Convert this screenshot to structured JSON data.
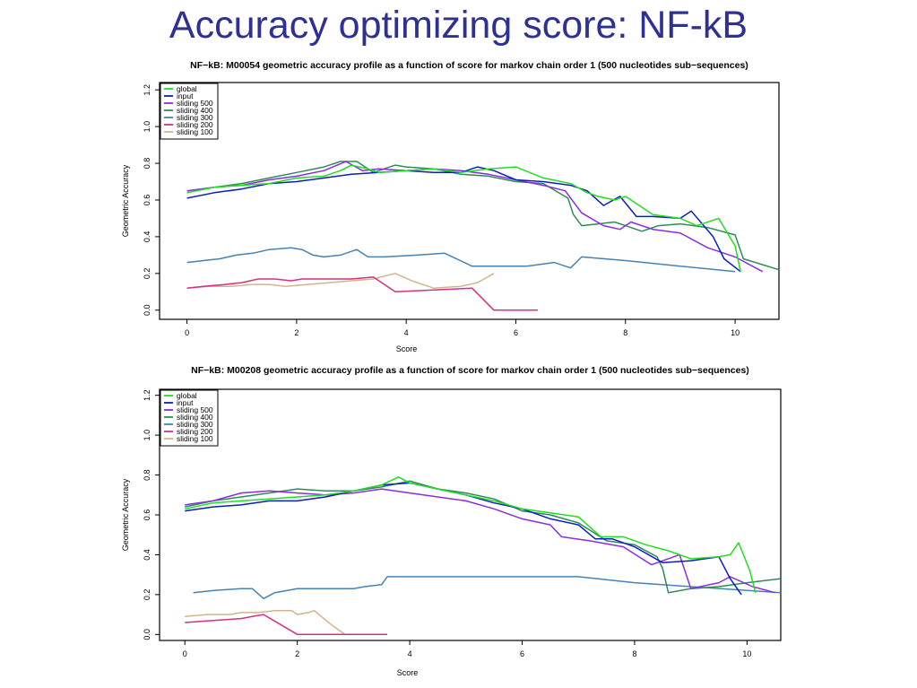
{
  "slide": {
    "title": "Accuracy optimizing score: NF-kB"
  },
  "chart_data": [
    {
      "type": "line",
      "title": "NF−kB:  M00054 geometric accuracy profile as a function of score for markov chain order 1 (500 nucleotides sub−sequences)",
      "xlabel": "Score",
      "ylabel": "Geometric Accuracy",
      "xlim": [
        -0.5,
        10.8
      ],
      "ylim": [
        -0.05,
        1.24
      ],
      "xticks": [
        0,
        2,
        4,
        6,
        8,
        10
      ],
      "yticks": [
        0.0,
        0.2,
        0.4,
        0.6,
        0.8,
        1.0,
        1.2
      ],
      "ytick_labels": [
        "0.0",
        "0.2",
        "0.4",
        "0.6",
        "0.8",
        "1.0",
        "1.2"
      ],
      "grid": false,
      "legend_position": "top-left",
      "series": [
        {
          "name": "global",
          "color": "#22dd22",
          "x": [
            0,
            0.5,
            1,
            1.5,
            2,
            2.5,
            2.8,
            3,
            3.3,
            3.5,
            4,
            4.5,
            5,
            5.5,
            6,
            6.5,
            7,
            7.3,
            7.5,
            7.8,
            8,
            8.5,
            9,
            9.3,
            9.7,
            10,
            10.1
          ],
          "y": [
            0.64,
            0.67,
            0.68,
            0.69,
            0.72,
            0.73,
            0.76,
            0.79,
            0.77,
            0.75,
            0.76,
            0.77,
            0.75,
            0.77,
            0.78,
            0.72,
            0.69,
            0.64,
            0.62,
            0.6,
            0.62,
            0.52,
            0.5,
            0.46,
            0.5,
            0.35,
            0.21
          ]
        },
        {
          "name": "input",
          "color": "#0a1fb8",
          "x": [
            0,
            0.5,
            1,
            1.5,
            2,
            2.5,
            3,
            3.5,
            4,
            4.5,
            5,
            5.3,
            5.6,
            6,
            6.5,
            7,
            7.3,
            7.6,
            7.9,
            8.2,
            8.5,
            9,
            9.2,
            9.6,
            9.8,
            10.1
          ],
          "y": [
            0.61,
            0.64,
            0.66,
            0.69,
            0.7,
            0.72,
            0.74,
            0.75,
            0.76,
            0.75,
            0.75,
            0.78,
            0.76,
            0.71,
            0.7,
            0.68,
            0.65,
            0.57,
            0.62,
            0.51,
            0.51,
            0.5,
            0.54,
            0.4,
            0.28,
            0.21
          ]
        },
        {
          "name": "sliding 500",
          "color": "#8b2be2",
          "x": [
            0,
            0.5,
            1,
            1.5,
            2,
            2.5,
            2.9,
            3.2,
            3.5,
            4,
            4.5,
            5,
            5.5,
            6,
            6.5,
            6.9,
            7.2,
            7.6,
            7.9,
            8.1,
            8.5,
            9,
            9.5,
            10,
            10.5
          ],
          "y": [
            0.65,
            0.67,
            0.68,
            0.71,
            0.73,
            0.76,
            0.81,
            0.76,
            0.77,
            0.76,
            0.77,
            0.76,
            0.74,
            0.71,
            0.68,
            0.65,
            0.53,
            0.46,
            0.44,
            0.48,
            0.44,
            0.42,
            0.34,
            0.29,
            0.21
          ]
        },
        {
          "name": "sliding 400",
          "color": "#2e8b57",
          "x": [
            0,
            0.5,
            1,
            1.5,
            2,
            2.5,
            2.8,
            3.1,
            3.4,
            3.8,
            4,
            4.5,
            5,
            5.5,
            6,
            6.5,
            6.95,
            7.05,
            7.2,
            7.5,
            7.8,
            8,
            8.3,
            8.6,
            9,
            9.5,
            10,
            10.15,
            10.8
          ],
          "y": [
            0.64,
            0.67,
            0.69,
            0.72,
            0.75,
            0.78,
            0.81,
            0.81,
            0.75,
            0.79,
            0.78,
            0.77,
            0.74,
            0.73,
            0.7,
            0.69,
            0.61,
            0.52,
            0.46,
            0.47,
            0.48,
            0.46,
            0.43,
            0.46,
            0.47,
            0.45,
            0.41,
            0.28,
            0.22
          ]
        },
        {
          "name": "sliding 300",
          "color": "#4682b4",
          "x": [
            0,
            0.3,
            0.6,
            0.9,
            1.2,
            1.5,
            1.9,
            2.1,
            2.3,
            2.5,
            2.8,
            3.1,
            3.3,
            3.6,
            4.2,
            4.7,
            5.2,
            6.2,
            6.7,
            7,
            7.2,
            8,
            9,
            10
          ],
          "y": [
            0.26,
            0.27,
            0.28,
            0.3,
            0.31,
            0.33,
            0.34,
            0.33,
            0.3,
            0.29,
            0.3,
            0.33,
            0.29,
            0.29,
            0.3,
            0.31,
            0.24,
            0.24,
            0.26,
            0.23,
            0.29,
            0.27,
            0.24,
            0.21
          ]
        },
        {
          "name": "sliding 200",
          "color": "#d62f86",
          "x": [
            0,
            0.3,
            0.7,
            1.0,
            1.3,
            1.6,
            1.9,
            2.1,
            2.5,
            3.0,
            3.4,
            3.8,
            4.5,
            5.2,
            5.6,
            6.0,
            6.4
          ],
          "y": [
            0.12,
            0.13,
            0.14,
            0.15,
            0.17,
            0.17,
            0.16,
            0.17,
            0.17,
            0.17,
            0.18,
            0.1,
            0.11,
            0.12,
            0.0,
            0.0,
            0.0
          ]
        },
        {
          "name": "sliding 100",
          "color": "#d2b48c",
          "x": [
            0,
            0.4,
            0.8,
            1.2,
            1.5,
            1.8,
            2.2,
            2.6,
            3.0,
            3.4,
            3.8,
            4.1,
            4.5,
            5.0,
            5.3,
            5.6
          ],
          "y": [
            0.12,
            0.13,
            0.13,
            0.14,
            0.14,
            0.13,
            0.14,
            0.15,
            0.16,
            0.17,
            0.2,
            0.16,
            0.12,
            0.13,
            0.15,
            0.2
          ]
        }
      ]
    },
    {
      "type": "line",
      "title": "NF−kB:  M00208 geometric accuracy profile as a function of score for markov chain order 1 (500 nucleotides sub−sequences)",
      "xlabel": "Score",
      "ylabel": "Geometric Accuracy",
      "xlim": [
        -0.45,
        10.6
      ],
      "ylim": [
        -0.03,
        1.23
      ],
      "xticks": [
        0,
        2,
        4,
        6,
        8,
        10
      ],
      "yticks": [
        0.0,
        0.2,
        0.4,
        0.6,
        0.8,
        1.0,
        1.2
      ],
      "ytick_labels": [
        "0.0",
        "0.2",
        "0.4",
        "0.6",
        "0.8",
        "1.0",
        "1.2"
      ],
      "grid": false,
      "legend_position": "top-left",
      "series": [
        {
          "name": "global",
          "color": "#22dd22",
          "x": [
            0,
            0.5,
            1,
            1.5,
            2,
            2.5,
            3,
            3.5,
            3.8,
            4,
            4.5,
            5,
            5.5,
            6,
            6.5,
            7,
            7.4,
            7.8,
            8.2,
            8.6,
            9,
            9.5,
            9.7,
            9.85,
            10.05,
            10.15
          ],
          "y": [
            0.63,
            0.66,
            0.67,
            0.68,
            0.69,
            0.7,
            0.72,
            0.75,
            0.79,
            0.76,
            0.73,
            0.7,
            0.67,
            0.63,
            0.61,
            0.59,
            0.49,
            0.49,
            0.45,
            0.42,
            0.38,
            0.39,
            0.4,
            0.46,
            0.32,
            0.21
          ]
        },
        {
          "name": "input",
          "color": "#0a1fb8",
          "x": [
            0,
            0.5,
            1,
            1.5,
            2,
            2.5,
            3,
            3.5,
            4,
            4.5,
            5,
            5.5,
            6,
            6.5,
            7,
            7.3,
            7.6,
            8,
            8.5,
            9,
            9.5,
            9.7,
            9.9
          ],
          "y": [
            0.62,
            0.64,
            0.65,
            0.67,
            0.67,
            0.69,
            0.72,
            0.75,
            0.76,
            0.73,
            0.7,
            0.66,
            0.63,
            0.58,
            0.55,
            0.48,
            0.48,
            0.44,
            0.36,
            0.37,
            0.39,
            0.28,
            0.2
          ]
        },
        {
          "name": "sliding 500",
          "color": "#8b2be2",
          "x": [
            0,
            0.5,
            1,
            1.5,
            2,
            2.5,
            3,
            3.5,
            4,
            4.5,
            5,
            5.5,
            6,
            6.5,
            6.7,
            7.2,
            7.8,
            8.3,
            8.8,
            9.0,
            9.5,
            9.7,
            10.1,
            10.5
          ],
          "y": [
            0.65,
            0.67,
            0.71,
            0.72,
            0.71,
            0.7,
            0.71,
            0.73,
            0.71,
            0.69,
            0.67,
            0.63,
            0.58,
            0.55,
            0.49,
            0.47,
            0.44,
            0.35,
            0.4,
            0.23,
            0.26,
            0.29,
            0.24,
            0.21
          ]
        },
        {
          "name": "sliding 400",
          "color": "#2e8b57",
          "x": [
            0,
            0.5,
            1,
            1.5,
            2,
            2.5,
            3,
            3.5,
            4,
            4.5,
            5,
            5.5,
            6,
            6.5,
            7,
            7.5,
            8,
            8.4,
            8.5,
            8.6,
            9,
            9.5,
            10,
            10.6
          ],
          "y": [
            0.64,
            0.67,
            0.69,
            0.71,
            0.73,
            0.72,
            0.72,
            0.74,
            0.77,
            0.73,
            0.71,
            0.68,
            0.62,
            0.6,
            0.56,
            0.47,
            0.45,
            0.39,
            0.33,
            0.21,
            0.23,
            0.24,
            0.26,
            0.28
          ]
        },
        {
          "name": "sliding 300",
          "color": "#4682b4",
          "x": [
            0.15,
            0.5,
            1,
            1.2,
            1.4,
            1.6,
            2,
            2.5,
            3,
            3.2,
            3.5,
            3.6,
            4,
            5,
            6,
            7,
            8,
            9,
            10.6
          ],
          "y": [
            0.21,
            0.22,
            0.23,
            0.23,
            0.18,
            0.21,
            0.23,
            0.23,
            0.23,
            0.24,
            0.25,
            0.29,
            0.29,
            0.29,
            0.29,
            0.29,
            0.26,
            0.24,
            0.21
          ]
        },
        {
          "name": "sliding 200",
          "color": "#d62f86",
          "x": [
            0,
            0.5,
            1,
            1.2,
            1.4,
            1.7,
            2.0,
            2.5,
            3.0,
            3.6
          ],
          "y": [
            0.06,
            0.07,
            0.08,
            0.09,
            0.1,
            0.05,
            0.0,
            0.0,
            0.0,
            0.0
          ]
        },
        {
          "name": "sliding 100",
          "color": "#d2b48c",
          "x": [
            0,
            0.4,
            0.8,
            1.0,
            1.3,
            1.6,
            1.9,
            2.0,
            2.2,
            2.3,
            2.6,
            2.85
          ],
          "y": [
            0.09,
            0.1,
            0.1,
            0.11,
            0.11,
            0.12,
            0.12,
            0.1,
            0.11,
            0.12,
            0.05,
            0.0
          ]
        }
      ]
    }
  ]
}
